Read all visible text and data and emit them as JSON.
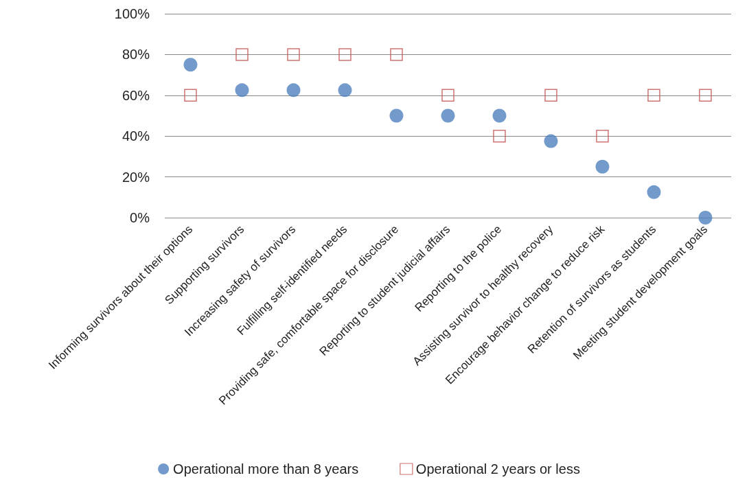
{
  "chart_data": {
    "type": "scatter",
    "categories": [
      "Informing survivors about their options",
      "Supporting survivors",
      "Increasing safety of survivors",
      "Fulfilling self-identified needs",
      "Providing safe, comfortable space for disclosure",
      "Reporting to student judicial affairs",
      "Reporting to the police",
      "Assisting survivor to healthy recovery",
      "Encourage behavior change to reduce risk",
      "Retention of survivors as students",
      "Meeting student development goals"
    ],
    "series": [
      {
        "name": "Operational more than 8 years",
        "color": "#4f81bd",
        "marker": "circle",
        "values": [
          75,
          62.5,
          62.5,
          62.5,
          50,
          50,
          50,
          37.5,
          25,
          12.5,
          0
        ]
      },
      {
        "name": "Operational 2 years or less",
        "color": "#c0504d",
        "marker": "square",
        "values": [
          60,
          80,
          80,
          80,
          80,
          60,
          40,
          60,
          40,
          60,
          60
        ]
      }
    ],
    "ylim": [
      0,
      100
    ],
    "yticks": [
      {
        "value": 0,
        "label": "0%"
      },
      {
        "value": 20,
        "label": "20%"
      },
      {
        "value": 40,
        "label": "40%"
      },
      {
        "value": 60,
        "label": "60%"
      },
      {
        "value": 80,
        "label": "80%"
      },
      {
        "value": 100,
        "label": "100%"
      }
    ],
    "grid": "y",
    "legend": "bottom"
  }
}
